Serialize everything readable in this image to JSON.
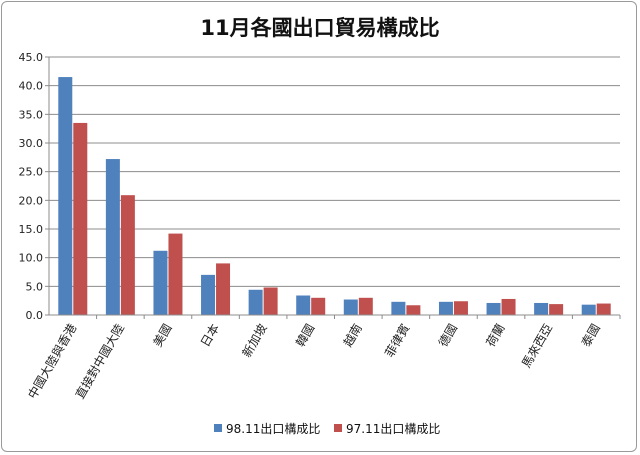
{
  "chart_data": {
    "type": "bar",
    "title": "11月各國出口貿易構成比",
    "ylim": [
      0,
      45
    ],
    "ytick_labels": [
      "0.0",
      "5.0",
      "10.0",
      "15.0",
      "20.0",
      "25.0",
      "30.0",
      "35.0",
      "40.0",
      "45.0"
    ],
    "grid": true,
    "legend_position": "bottom",
    "categories": [
      "中國大陸與香港",
      "直接對中國大陸",
      "美國",
      "日本",
      "新加坡",
      "韓國",
      "越南",
      "菲律賓",
      "德國",
      "荷蘭",
      "馬來西亞",
      "泰國"
    ],
    "series": [
      {
        "name": "98.11出口構成比",
        "color": "#4f81bd",
        "values": [
          41.5,
          27.2,
          11.2,
          7.0,
          4.4,
          3.4,
          2.7,
          2.3,
          2.3,
          2.1,
          2.1,
          1.8
        ]
      },
      {
        "name": "97.11出口構成比",
        "color": "#c0504d",
        "values": [
          33.5,
          20.9,
          14.2,
          9.0,
          4.8,
          3.0,
          3.0,
          1.7,
          2.4,
          2.8,
          1.9,
          2.0
        ]
      }
    ]
  }
}
